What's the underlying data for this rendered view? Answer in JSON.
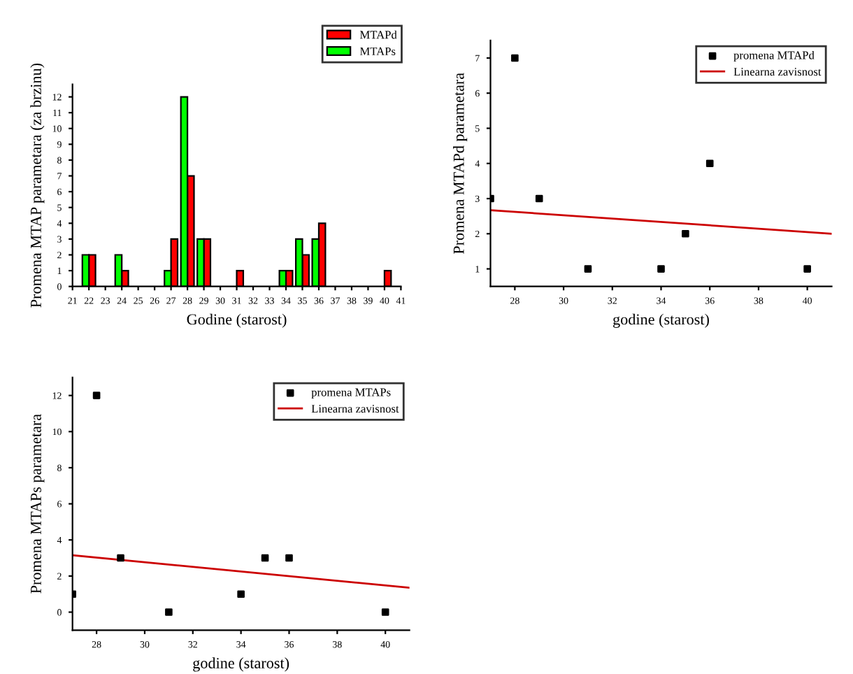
{
  "chart_data": [
    {
      "type": "bar",
      "xlabel": "Godine (starost)",
      "ylabel": "Promena MTAP parametara (za brzinu)",
      "legend": "top right",
      "grid": false,
      "xlim": [
        21,
        41
      ],
      "xticks": [
        21,
        22,
        23,
        24,
        25,
        26,
        27,
        28,
        29,
        30,
        31,
        32,
        33,
        34,
        35,
        36,
        37,
        38,
        39,
        40,
        41
      ],
      "ylim": [
        0,
        12.8
      ],
      "yticks": [
        0,
        1,
        2,
        3,
        4,
        5,
        6,
        7,
        8,
        9,
        10,
        11,
        12
      ],
      "series": [
        {
          "name": "MTAPd",
          "color": "#ff0000",
          "x": [
            22,
            24,
            27,
            28,
            29,
            31,
            34,
            35,
            36,
            40
          ],
          "values": [
            2,
            1,
            3,
            7,
            3,
            1,
            1,
            2,
            4,
            1
          ]
        },
        {
          "name": "MTAPs",
          "color": "#00ff00",
          "x": [
            22,
            24,
            27,
            28,
            29,
            34,
            35,
            36
          ],
          "values": [
            2,
            2,
            1,
            12,
            3,
            1,
            3,
            3
          ]
        }
      ]
    },
    {
      "type": "scatter",
      "xlabel": "godine (starost)",
      "ylabel": "Promena MTAPd parametara",
      "legend": "top right",
      "grid": false,
      "xlim": [
        27,
        41
      ],
      "xticks": [
        28,
        30,
        32,
        34,
        36,
        38,
        40
      ],
      "ylim": [
        0.5,
        7.5
      ],
      "yticks": [
        1,
        2,
        3,
        4,
        5,
        6,
        7
      ],
      "series": [
        {
          "name": "promena MTAPd",
          "marker": "square",
          "color": "#000000",
          "x": [
            27,
            28,
            29,
            31,
            34,
            35,
            36,
            40
          ],
          "values": [
            3,
            7,
            3,
            1,
            1,
            2,
            4,
            1
          ]
        },
        {
          "name": "Linearna zavisnost",
          "type": "line",
          "color": "#cc0000",
          "x": [
            27,
            41
          ],
          "values": [
            2.67,
            2.0
          ],
          "marker": "none"
        }
      ]
    },
    {
      "type": "scatter",
      "xlabel": "godine (starost)",
      "ylabel": "Promena MTAPs parametara",
      "legend": "top right",
      "grid": false,
      "xlim": [
        27,
        41
      ],
      "xticks": [
        28,
        30,
        32,
        34,
        36,
        38,
        40
      ],
      "ylim": [
        -1,
        13
      ],
      "yticks": [
        0,
        2,
        4,
        6,
        8,
        10,
        12
      ],
      "series": [
        {
          "name": "promena MTAPs",
          "marker": "square",
          "color": "#000000",
          "x": [
            27,
            28,
            29,
            31,
            34,
            35,
            36,
            40
          ],
          "values": [
            1,
            12,
            3,
            0,
            1,
            3,
            3,
            0
          ]
        },
        {
          "name": "Linearna zavisnost",
          "type": "line",
          "color": "#cc0000",
          "x": [
            27,
            41
          ],
          "values": [
            3.15,
            1.35
          ],
          "marker": "none"
        }
      ]
    }
  ]
}
